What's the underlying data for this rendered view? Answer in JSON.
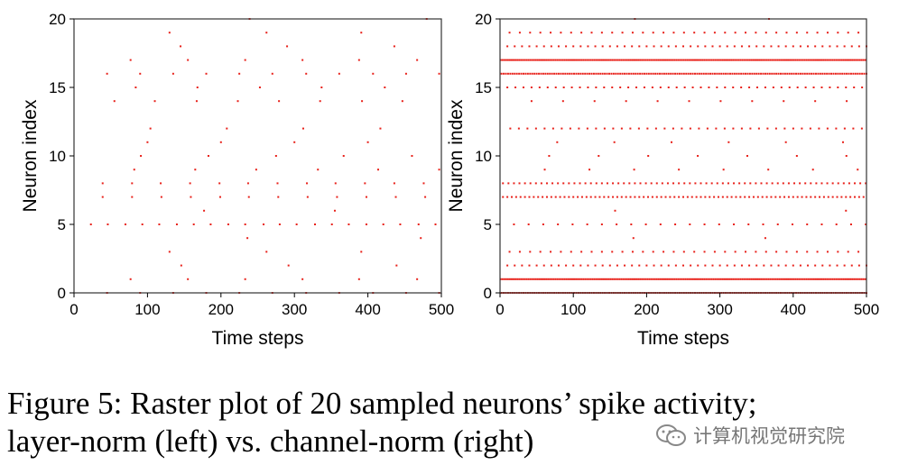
{
  "chart_data": [
    {
      "type": "scatter",
      "subtype": "raster",
      "title": "layer-norm",
      "xlabel": "Time steps",
      "ylabel": "Neuron index",
      "xlim": [
        0,
        500
      ],
      "ylim": [
        0,
        20
      ],
      "xticks": [
        "0",
        "100",
        "200",
        "300",
        "400",
        "500"
      ],
      "yticks": [
        "0",
        "5",
        "10",
        "15",
        "20"
      ],
      "color": "#e8221b",
      "spikes": [
        {
          "neuron": 0,
          "times": [
            45,
            90,
            135,
            180,
            225,
            270,
            316,
            361,
            407,
            452,
            497
          ]
        },
        {
          "neuron": 1,
          "times": [
            77,
            155,
            233,
            311,
            388,
            467
          ]
        },
        {
          "neuron": 2,
          "times": [
            146,
            292,
            439
          ]
        },
        {
          "neuron": 3,
          "times": [
            130,
            262,
            391
          ]
        },
        {
          "neuron": 4,
          "times": [
            236,
            472
          ]
        },
        {
          "neuron": 5,
          "times": [
            23,
            46,
            70,
            93,
            116,
            140,
            163,
            186,
            210,
            233,
            258,
            280,
            303,
            328,
            351,
            374,
            398,
            421,
            444,
            469,
            492
          ]
        },
        {
          "neuron": 6,
          "times": [
            177,
            355
          ]
        },
        {
          "neuron": 7,
          "times": [
            39,
            79,
            119,
            159,
            199,
            238,
            278,
            318,
            358,
            398,
            438,
            478
          ]
        },
        {
          "neuron": 8,
          "times": [
            39,
            79,
            118,
            158,
            198,
            237,
            277,
            317,
            356,
            396,
            436,
            476
          ]
        },
        {
          "neuron": 9,
          "times": [
            82,
            165,
            248,
            332,
            414,
            497
          ]
        },
        {
          "neuron": 10,
          "times": [
            91,
            183,
            275,
            367,
            460
          ]
        },
        {
          "neuron": 11,
          "times": [
            100,
            200,
            300,
            400
          ]
        },
        {
          "neuron": 12,
          "times": [
            104,
            208,
            312,
            417
          ]
        },
        {
          "neuron": 14,
          "times": [
            55,
            110,
            167,
            223,
            279,
            335,
            392,
            447
          ]
        },
        {
          "neuron": 15,
          "times": [
            84,
            168,
            253,
            337,
            423
          ]
        },
        {
          "neuron": 16,
          "times": [
            45,
            90,
            135,
            180,
            225,
            270,
            316,
            361,
            407,
            452,
            497
          ]
        },
        {
          "neuron": 17,
          "times": [
            77,
            155,
            233,
            311,
            388,
            467
          ]
        },
        {
          "neuron": 18,
          "times": [
            145,
            290,
            436
          ]
        },
        {
          "neuron": 19,
          "times": [
            130,
            262,
            391
          ]
        },
        {
          "neuron": 20,
          "times": [
            239,
            480
          ]
        }
      ]
    },
    {
      "type": "scatter",
      "subtype": "raster",
      "title": "channel-norm",
      "xlabel": "Time steps",
      "ylabel": "Neuron index",
      "xlim": [
        0,
        500
      ],
      "ylim": [
        0,
        20
      ],
      "xticks": [
        "0",
        "100",
        "200",
        "300",
        "400",
        "500"
      ],
      "yticks": [
        "0",
        "5",
        "10",
        "15",
        "20"
      ],
      "color": "#e8221b",
      "periodic_spikes": [
        {
          "neuron": 0,
          "start": 2,
          "period": 3
        },
        {
          "neuron": 1,
          "start": 1,
          "period": 2.5
        },
        {
          "neuron": 2,
          "start": 10,
          "period": 10
        },
        {
          "neuron": 3,
          "start": 13,
          "period": 14
        },
        {
          "neuron": 4,
          "start": 182,
          "period": 180
        },
        {
          "neuron": 5,
          "start": 19,
          "period": 20
        },
        {
          "neuron": 6,
          "start": 157,
          "period": 315
        },
        {
          "neuron": 7,
          "start": 4,
          "period": 6
        },
        {
          "neuron": 8,
          "start": 4,
          "period": 7.5
        },
        {
          "neuron": 9,
          "start": 61,
          "period": 61
        },
        {
          "neuron": 10,
          "start": 67,
          "period": 67.6
        },
        {
          "neuron": 11,
          "start": 78,
          "period": 78
        },
        {
          "neuron": 12,
          "start": 14,
          "period": 11.7
        },
        {
          "neuron": 14,
          "start": 43,
          "period": 43
        },
        {
          "neuron": 15,
          "start": 10,
          "period": 11
        },
        {
          "neuron": 16,
          "start": 2,
          "period": 3
        },
        {
          "neuron": 17,
          "start": 1,
          "period": 2.5
        },
        {
          "neuron": 18,
          "start": 10,
          "period": 10
        },
        {
          "neuron": 19,
          "start": 13,
          "period": 14
        },
        {
          "neuron": 20,
          "start": 184,
          "period": 183
        }
      ]
    }
  ],
  "caption": {
    "line1": "Figure 5: Raster plot of 20 sampled neurons’ spike activity;",
    "line2": "layer-norm (left) vs. channel-norm (right)"
  },
  "watermark": {
    "text": "计算机视觉研究院",
    "icon": "wechat-icon"
  }
}
